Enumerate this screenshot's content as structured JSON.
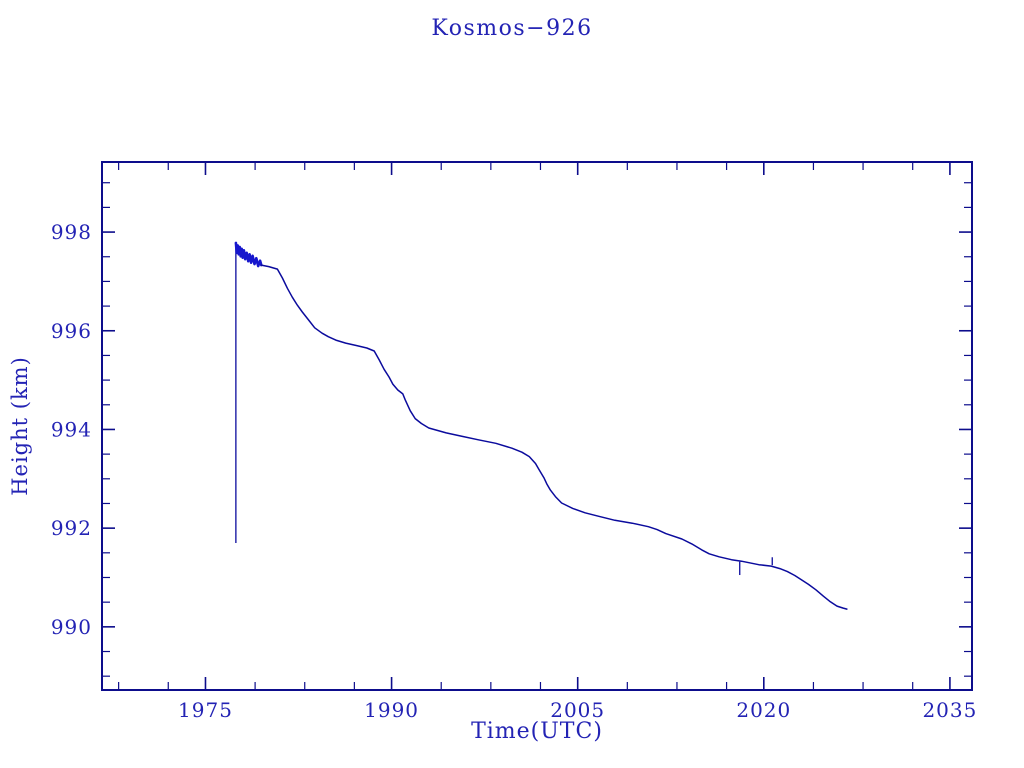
{
  "chart_data": {
    "type": "line",
    "title": "Kosmos−926",
    "xlabel": "Time(UTC)",
    "ylabel": "Height (km)",
    "xlim": [
      1966.66,
      2036.78
    ],
    "ylim": [
      988.72,
      999.42
    ],
    "grid": false,
    "legend": "none",
    "x_ticks_major": [
      {
        "year": 1975,
        "label": "1975"
      },
      {
        "year": 1990,
        "label": "1990"
      },
      {
        "year": 2005,
        "label": "2005"
      },
      {
        "year": 2020,
        "label": "2020"
      },
      {
        "year": 2035,
        "label": "2035"
      }
    ],
    "x_ticks_minor": [
      1968,
      1972,
      1979,
      1983,
      1987,
      1994,
      1998,
      2002,
      2009,
      2013,
      2017,
      2024,
      2028,
      2032
    ],
    "y_ticks_major": [
      {
        "value": 990,
        "label": "990"
      },
      {
        "value": 992,
        "label": "992"
      },
      {
        "value": 994,
        "label": "994"
      },
      {
        "value": 996,
        "label": "996"
      },
      {
        "value": 998,
        "label": "998"
      }
    ],
    "y_ticks_minor": [
      989,
      989.5,
      990.5,
      991,
      991.5,
      992.5,
      993,
      993.5,
      994.5,
      995,
      995.5,
      996.5,
      997,
      997.5,
      998.5,
      999
    ],
    "colors": {
      "background": "#ffffff",
      "frame": "#0d0d8c",
      "text": "#2323b4",
      "curve": "#0b0b9d",
      "noise": "#1717cd"
    },
    "series": [
      {
        "name": "height-km",
        "start_spike": {
          "year": 1977.45,
          "from": 991.7,
          "to": 997.78
        },
        "glitch_spikes": [
          {
            "year": 2018.06,
            "from": 991.32,
            "to": 991.05
          },
          {
            "year": 2020.68,
            "from": 991.25,
            "to": 991.41
          }
        ],
        "noise_points": [
          [
            1977.45,
            997.78
          ],
          [
            1977.52,
            997.58
          ],
          [
            1977.6,
            997.73
          ],
          [
            1977.68,
            997.55
          ],
          [
            1977.76,
            997.7
          ],
          [
            1977.84,
            997.51
          ],
          [
            1977.92,
            997.66
          ],
          [
            1978.0,
            997.48
          ],
          [
            1978.1,
            997.63
          ],
          [
            1978.2,
            997.45
          ],
          [
            1978.32,
            997.58
          ],
          [
            1978.44,
            997.41
          ],
          [
            1978.56,
            997.55
          ],
          [
            1978.68,
            997.38
          ],
          [
            1978.8,
            997.52
          ],
          [
            1978.95,
            997.35
          ],
          [
            1979.1,
            997.47
          ],
          [
            1979.25,
            997.31
          ],
          [
            1979.4,
            997.42
          ],
          [
            1979.5,
            997.33
          ]
        ],
        "points": [
          [
            1979.5,
            997.33
          ],
          [
            1980.1,
            997.3
          ],
          [
            1980.8,
            997.25
          ],
          [
            1981.2,
            997.07
          ],
          [
            1981.6,
            996.86
          ],
          [
            1982.0,
            996.68
          ],
          [
            1982.4,
            996.52
          ],
          [
            1982.8,
            996.38
          ],
          [
            1983.3,
            996.22
          ],
          [
            1983.8,
            996.06
          ],
          [
            1984.4,
            995.95
          ],
          [
            1984.9,
            995.88
          ],
          [
            1985.5,
            995.81
          ],
          [
            1986.3,
            995.75
          ],
          [
            1987.2,
            995.7
          ],
          [
            1988.0,
            995.65
          ],
          [
            1988.6,
            995.59
          ],
          [
            1989.0,
            995.41
          ],
          [
            1989.4,
            995.22
          ],
          [
            1989.8,
            995.06
          ],
          [
            1990.1,
            994.92
          ],
          [
            1990.5,
            994.8
          ],
          [
            1990.9,
            994.72
          ],
          [
            1991.1,
            994.6
          ],
          [
            1991.5,
            994.38
          ],
          [
            1991.9,
            994.22
          ],
          [
            1992.4,
            994.12
          ],
          [
            1993.0,
            994.03
          ],
          [
            1994.4,
            993.93
          ],
          [
            1995.7,
            993.86
          ],
          [
            1997.0,
            993.79
          ],
          [
            1998.4,
            993.72
          ],
          [
            1999.7,
            993.62
          ],
          [
            2000.5,
            993.54
          ],
          [
            2001.1,
            993.45
          ],
          [
            2001.6,
            993.31
          ],
          [
            2001.9,
            993.18
          ],
          [
            2002.3,
            993.01
          ],
          [
            2002.5,
            992.9
          ],
          [
            2002.8,
            992.77
          ],
          [
            2003.2,
            992.64
          ],
          [
            2003.7,
            992.51
          ],
          [
            2004.6,
            992.4
          ],
          [
            2005.6,
            992.31
          ],
          [
            2006.7,
            992.24
          ],
          [
            2008.0,
            992.16
          ],
          [
            2009.4,
            992.1
          ],
          [
            2010.7,
            992.03
          ],
          [
            2011.4,
            991.97
          ],
          [
            2012.1,
            991.89
          ],
          [
            2013.4,
            991.78
          ],
          [
            2014.2,
            991.68
          ],
          [
            2015.0,
            991.56
          ],
          [
            2015.6,
            991.48
          ],
          [
            2016.4,
            991.42
          ],
          [
            2017.4,
            991.36
          ],
          [
            2018.2,
            991.33
          ],
          [
            2019.0,
            991.29
          ],
          [
            2019.6,
            991.26
          ],
          [
            2020.6,
            991.23
          ],
          [
            2021.3,
            991.18
          ],
          [
            2021.9,
            991.12
          ],
          [
            2022.5,
            991.04
          ],
          [
            2023.0,
            990.96
          ],
          [
            2023.6,
            990.86
          ],
          [
            2024.2,
            990.75
          ],
          [
            2024.8,
            990.62
          ],
          [
            2025.3,
            990.52
          ],
          [
            2025.9,
            990.42
          ],
          [
            2026.4,
            990.38
          ],
          [
            2026.7,
            990.36
          ]
        ]
      }
    ]
  }
}
